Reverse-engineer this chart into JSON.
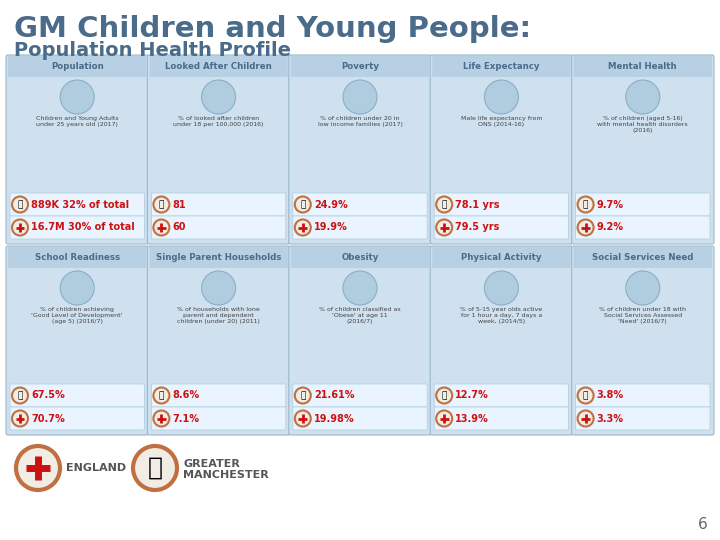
{
  "title_line1": "GM Children and Young People:",
  "title_line2": "Population Health Profile",
  "title_color": "#4a6b8a",
  "bg_color": "#ffffff",
  "row1_headers": [
    "Population",
    "Looked After Children",
    "Poverty",
    "Life Expectancy",
    "Mental Health"
  ],
  "row1_descriptions": [
    "Children and Young Adults\nunder 25 years old (2017)",
    "% of looked after children\nunder 18 per 100,000 (2016)",
    "% of children under 20 in\nlow income families (2017)",
    "Male life expectancy from\nONS (2014-16)",
    "% of children (aged 5-16)\nwith mental health disorders\n(2016)"
  ],
  "row1_gm_values": [
    "889K 32% of total",
    "81",
    "24.9%",
    "78.1 yrs",
    "9.7%"
  ],
  "row1_eng_values": [
    "16.7M 30% of total",
    "60",
    "19.9%",
    "79.5 yrs",
    "9.2%"
  ],
  "row2_headers": [
    "School Readiness",
    "Single Parent Households",
    "Obesity",
    "Physical Activity",
    "Social Services Need"
  ],
  "row2_descriptions": [
    "% of children achieving\n'Good Level of Development'\n(age 5) (2016/7)",
    "% of households with lone\nparent and dependent\nchildren (under 20) (2011)",
    "% of children classified as\n'Obese' at age 11\n(2016/7)",
    "% of 5-15 year olds active\nfor 1 hour a day, 7 days a\nweek, (2014/5)",
    "% of children under 18 with\nSocial Services Assessed\n'Need' (2016/7)"
  ],
  "row2_gm_values": [
    "67.5%",
    "8.6%",
    "21.61%",
    "12.7%",
    "3.8%"
  ],
  "row2_eng_values": [
    "70.7%",
    "7.1%",
    "19.98%",
    "13.9%",
    "3.3%"
  ],
  "gm_color": "#cc0000",
  "eng_color": "#cc0000",
  "header_color": "#4a6b8a",
  "card_bg": "#cfe0ef",
  "header_bg": "#b8d0e3",
  "icon_bg": "#b0ccdf",
  "value_box_bg": "#eaf4ff",
  "border_color": "#9ab8cc",
  "desc_color": "#444444",
  "page_num": "6"
}
